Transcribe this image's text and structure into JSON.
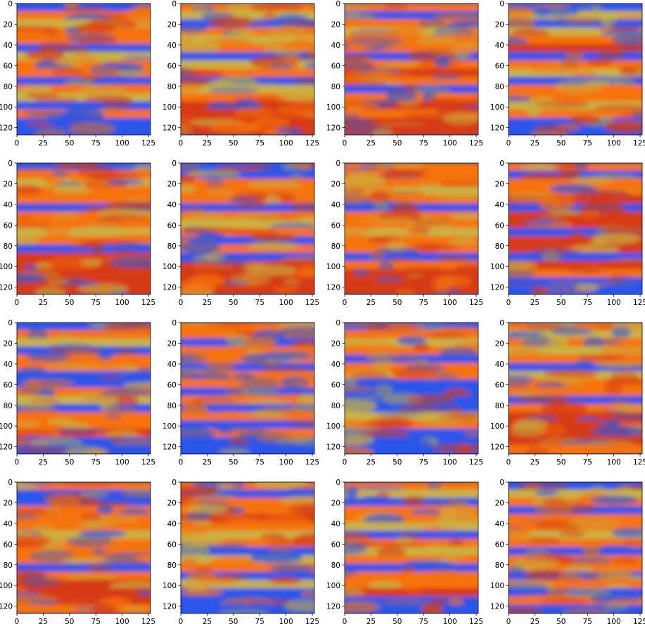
{
  "figure": {
    "rows": 4,
    "cols": 4
  },
  "colors": {
    "blue": "#2a55e8",
    "orange": "#f6720f",
    "yellow": "#c9b244",
    "red": "#d63a14",
    "frame": "#000000",
    "background": "#ffffff"
  },
  "chart_data": [
    {
      "type": "heatmap",
      "panel": 1,
      "xlim": [
        0,
        127
      ],
      "ylim": [
        127,
        0
      ],
      "x_ticks": [
        "0",
        "25",
        "50",
        "75",
        "100",
        "125"
      ],
      "y_ticks": [
        "0",
        "20",
        "40",
        "60",
        "80",
        "100",
        "120"
      ],
      "title": "",
      "xlabel": "",
      "ylabel": "",
      "grid": false,
      "bands": [
        "blue",
        "orange",
        "yellow",
        "orange",
        "orange",
        "blue",
        "yellow",
        "orange",
        "orange",
        "blue",
        "orange",
        "yellow",
        "blue",
        "orange",
        "blue",
        "blue"
      ]
    },
    {
      "type": "heatmap",
      "panel": 2,
      "xlim": [
        0,
        127
      ],
      "ylim": [
        127,
        0
      ],
      "x_ticks": [
        "0",
        "25",
        "50",
        "75",
        "100",
        "125"
      ],
      "y_ticks": [
        "0",
        "20",
        "40",
        "60",
        "80",
        "100",
        "120"
      ],
      "title": "",
      "xlabel": "",
      "ylabel": "",
      "grid": false,
      "bands": [
        "orange",
        "yellow",
        "blue",
        "orange",
        "yellow",
        "orange",
        "blue",
        "yellow",
        "orange",
        "blue",
        "yellow",
        "orange",
        "red",
        "red",
        "red",
        "red"
      ]
    },
    {
      "type": "heatmap",
      "panel": 3,
      "xlim": [
        0,
        127
      ],
      "ylim": [
        127,
        0
      ],
      "x_ticks": [
        "0",
        "25",
        "50",
        "75",
        "100",
        "125"
      ],
      "y_ticks": [
        "0",
        "20",
        "40",
        "60",
        "80",
        "100",
        "120"
      ],
      "title": "",
      "xlabel": "",
      "ylabel": "",
      "grid": false,
      "bands": [
        "orange",
        "blue",
        "orange",
        "yellow",
        "orange",
        "orange",
        "blue",
        "orange",
        "red",
        "orange",
        "blue",
        "orange",
        "red",
        "orange",
        "red",
        "red"
      ]
    },
    {
      "type": "heatmap",
      "panel": 4,
      "xlim": [
        0,
        127
      ],
      "ylim": [
        127,
        0
      ],
      "x_ticks": [
        "0",
        "25",
        "50",
        "75",
        "100",
        "125"
      ],
      "y_ticks": [
        "0",
        "20",
        "40",
        "60",
        "80",
        "100",
        "120"
      ],
      "title": "",
      "xlabel": "",
      "ylabel": "",
      "grid": false,
      "bands": [
        "blue",
        "yellow",
        "blue",
        "yellow",
        "orange",
        "red",
        "blue",
        "orange",
        "yellow",
        "blue",
        "orange",
        "orange",
        "yellow",
        "orange",
        "blue",
        "blue"
      ]
    },
    {
      "type": "heatmap",
      "panel": 5,
      "xlim": [
        0,
        127
      ],
      "ylim": [
        127,
        0
      ],
      "x_ticks": [
        "0",
        "25",
        "50",
        "75",
        "100",
        "125"
      ],
      "y_ticks": [
        "0",
        "20",
        "40",
        "60",
        "80",
        "100",
        "120"
      ],
      "title": "",
      "xlabel": "",
      "ylabel": "",
      "grid": false,
      "bands": [
        "blue",
        "orange",
        "yellow",
        "orange",
        "orange",
        "blue",
        "orange",
        "orange",
        "yellow",
        "orange",
        "blue",
        "red",
        "red",
        "red",
        "red",
        "red"
      ]
    },
    {
      "type": "heatmap",
      "panel": 6,
      "xlim": [
        0,
        127
      ],
      "ylim": [
        127,
        0
      ],
      "x_ticks": [
        "0",
        "25",
        "50",
        "75",
        "100",
        "125"
      ],
      "y_ticks": [
        "0",
        "20",
        "40",
        "60",
        "80",
        "100",
        "120"
      ],
      "title": "",
      "xlabel": "",
      "ylabel": "",
      "grid": false,
      "bands": [
        "blue",
        "blue",
        "orange",
        "orange",
        "orange",
        "blue",
        "orange",
        "yellow",
        "orange",
        "blue",
        "orange",
        "blue",
        "red",
        "red",
        "red",
        "red"
      ]
    },
    {
      "type": "heatmap",
      "panel": 7,
      "xlim": [
        0,
        127
      ],
      "ylim": [
        127,
        0
      ],
      "x_ticks": [
        "0",
        "25",
        "50",
        "75",
        "100",
        "125"
      ],
      "y_ticks": [
        "0",
        "20",
        "40",
        "60",
        "80",
        "100",
        "120"
      ],
      "title": "",
      "xlabel": "",
      "ylabel": "",
      "grid": false,
      "bands": [
        "orange",
        "orange",
        "orange",
        "yellow",
        "orange",
        "blue",
        "orange",
        "orange",
        "yellow",
        "orange",
        "orange",
        "blue",
        "orange",
        "red",
        "red",
        "red"
      ]
    },
    {
      "type": "heatmap",
      "panel": 8,
      "xlim": [
        0,
        127
      ],
      "ylim": [
        127,
        0
      ],
      "x_ticks": [
        "0",
        "25",
        "50",
        "75",
        "100",
        "125"
      ],
      "y_ticks": [
        "0",
        "20",
        "40",
        "60",
        "80",
        "100",
        "120"
      ],
      "title": "",
      "xlabel": "",
      "ylabel": "",
      "grid": false,
      "bands": [
        "orange",
        "blue",
        "orange",
        "orange",
        "red",
        "blue",
        "red",
        "red",
        "blue",
        "red",
        "red",
        "blue",
        "red",
        "orange",
        "blue",
        "blue"
      ]
    },
    {
      "type": "heatmap",
      "panel": 9,
      "xlim": [
        0,
        127
      ],
      "ylim": [
        127,
        0
      ],
      "x_ticks": [
        "0",
        "25",
        "50",
        "75",
        "100",
        "125"
      ],
      "y_ticks": [
        "0",
        "20",
        "40",
        "60",
        "80",
        "100",
        "120"
      ],
      "title": "",
      "xlabel": "",
      "ylabel": "",
      "grid": false,
      "bands": [
        "blue",
        "orange",
        "yellow",
        "blue",
        "orange",
        "orange",
        "blue",
        "blue",
        "orange",
        "yellow",
        "blue",
        "orange",
        "orange",
        "red",
        "blue",
        "blue"
      ]
    },
    {
      "type": "heatmap",
      "panel": 10,
      "xlim": [
        0,
        127
      ],
      "ylim": [
        127,
        0
      ],
      "x_ticks": [
        "0",
        "25",
        "50",
        "75",
        "100",
        "125"
      ],
      "y_ticks": [
        "0",
        "20",
        "40",
        "60",
        "80",
        "100",
        "120"
      ],
      "title": "",
      "xlabel": "",
      "ylabel": "",
      "grid": false,
      "bands": [
        "orange",
        "orange",
        "blue",
        "orange",
        "orange",
        "blue",
        "orange",
        "orange",
        "blue",
        "orange",
        "blue",
        "orange",
        "blue",
        "orange",
        "blue",
        "blue"
      ]
    },
    {
      "type": "heatmap",
      "panel": 11,
      "xlim": [
        0,
        127
      ],
      "ylim": [
        127,
        0
      ],
      "x_ticks": [
        "0",
        "25",
        "50",
        "75",
        "100",
        "125"
      ],
      "y_ticks": [
        "0",
        "20",
        "40",
        "60",
        "80",
        "100",
        "120"
      ],
      "title": "",
      "xlabel": "",
      "ylabel": "",
      "grid": false,
      "bands": [
        "blue",
        "orange",
        "yellow",
        "orange",
        "blue",
        "orange",
        "orange",
        "blue",
        "blue",
        "blue",
        "blue",
        "yellow",
        "orange",
        "blue",
        "blue",
        "blue"
      ]
    },
    {
      "type": "heatmap",
      "panel": 12,
      "xlim": [
        0,
        127
      ],
      "ylim": [
        127,
        0
      ],
      "x_ticks": [
        "0",
        "25",
        "50",
        "75",
        "100",
        "125"
      ],
      "y_ticks": [
        "0",
        "20",
        "40",
        "60",
        "80",
        "100",
        "120"
      ],
      "title": "",
      "xlabel": "",
      "ylabel": "",
      "grid": false,
      "bands": [
        "orange",
        "yellow",
        "orange",
        "yellow",
        "orange",
        "blue",
        "yellow",
        "orange",
        "orange",
        "blue",
        "orange",
        "red",
        "red",
        "red",
        "red",
        "orange"
      ]
    },
    {
      "type": "heatmap",
      "panel": 13,
      "xlim": [
        0,
        127
      ],
      "ylim": [
        127,
        0
      ],
      "x_ticks": [
        "0",
        "25",
        "50",
        "75",
        "100",
        "125"
      ],
      "y_ticks": [
        "0",
        "20",
        "40",
        "60",
        "80",
        "100",
        "120"
      ],
      "title": "",
      "xlabel": "",
      "ylabel": "",
      "grid": false,
      "bands": [
        "orange",
        "blue",
        "blue",
        "orange",
        "orange",
        "orange",
        "yellow",
        "orange",
        "orange",
        "orange",
        "blue",
        "orange",
        "red",
        "red",
        "red",
        "orange"
      ]
    },
    {
      "type": "heatmap",
      "panel": 14,
      "xlim": [
        0,
        127
      ],
      "ylim": [
        127,
        0
      ],
      "x_ticks": [
        "0",
        "25",
        "50",
        "75",
        "100",
        "125"
      ],
      "y_ticks": [
        "0",
        "20",
        "40",
        "60",
        "80",
        "100",
        "120"
      ],
      "title": "",
      "xlabel": "",
      "ylabel": "",
      "grid": false,
      "bands": [
        "orange",
        "blue",
        "orange",
        "orange",
        "red",
        "orange",
        "yellow",
        "orange",
        "blue",
        "yellow",
        "orange",
        "blue",
        "yellow",
        "blue",
        "blue",
        "blue"
      ]
    },
    {
      "type": "heatmap",
      "panel": 15,
      "xlim": [
        0,
        127
      ],
      "ylim": [
        127,
        0
      ],
      "x_ticks": [
        "0",
        "25",
        "50",
        "75",
        "100",
        "125"
      ],
      "y_ticks": [
        "0",
        "20",
        "40",
        "60",
        "80",
        "100",
        "120"
      ],
      "title": "",
      "xlabel": "",
      "ylabel": "",
      "grid": false,
      "bands": [
        "orange",
        "yellow",
        "blue",
        "orange",
        "orange",
        "yellow",
        "blue",
        "orange",
        "yellow",
        "orange",
        "blue",
        "orange",
        "orange",
        "red",
        "blue",
        "blue"
      ]
    },
    {
      "type": "heatmap",
      "panel": 16,
      "xlim": [
        0,
        127
      ],
      "ylim": [
        127,
        0
      ],
      "x_ticks": [
        "0",
        "25",
        "50",
        "75",
        "100",
        "125"
      ],
      "y_ticks": [
        "0",
        "20",
        "40",
        "60",
        "80",
        "100",
        "120"
      ],
      "title": "",
      "xlabel": "",
      "ylabel": "",
      "grid": false,
      "bands": [
        "blue",
        "yellow",
        "orange",
        "blue",
        "orange",
        "orange",
        "yellow",
        "orange",
        "blue",
        "orange",
        "orange",
        "blue",
        "orange",
        "blue",
        "orange",
        "blue"
      ]
    }
  ]
}
